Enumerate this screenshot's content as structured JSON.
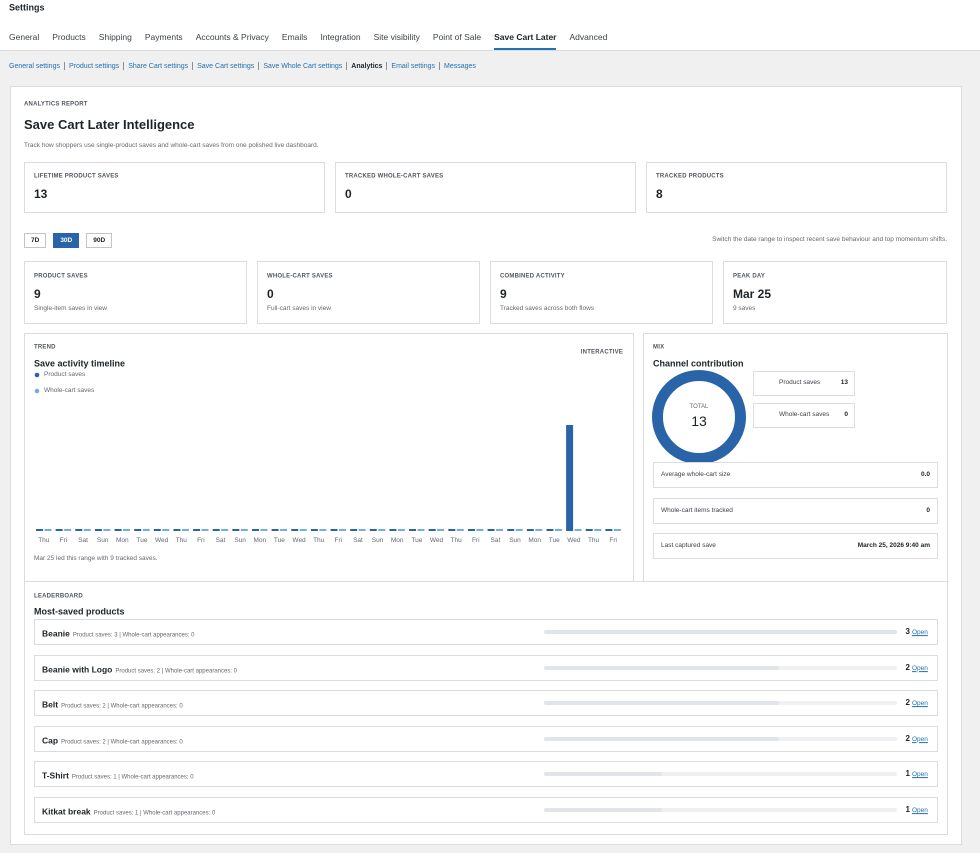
{
  "header": {
    "title": "Settings",
    "tabs": [
      "General",
      "Products",
      "Shipping",
      "Payments",
      "Accounts & Privacy",
      "Emails",
      "Integration",
      "Site visibility",
      "Point of Sale",
      "Save Cart Later",
      "Advanced"
    ],
    "active_tab_index": 9
  },
  "subnav": {
    "links": [
      "General settings",
      "Product settings",
      "Share Cart settings",
      "Save Cart settings",
      "Save Whole Cart settings",
      "Analytics",
      "Email settings",
      "Messages"
    ],
    "active_index": 5
  },
  "report": {
    "eyebrow": "ANALYTICS REPORT",
    "title": "Save Cart Later Intelligence",
    "description": "Track how shoppers use single-product saves and whole-cart saves from one polished live dashboard."
  },
  "lifetime": [
    {
      "label": "LIFETIME PRODUCT SAVES",
      "value": 13
    },
    {
      "label": "TRACKED WHOLE-CART SAVES",
      "value": 0
    },
    {
      "label": "TRACKED PRODUCTS",
      "value": 8
    }
  ],
  "range": {
    "options": [
      "7D",
      "30D",
      "90D"
    ],
    "active_index": 1,
    "hint": "Switch the date range to inspect recent save behaviour and top momentum shifts."
  },
  "kpis": [
    {
      "label": "PRODUCT SAVES",
      "value": 9,
      "note": "Single-item saves in view"
    },
    {
      "label": "WHOLE-CART SAVES",
      "value": 0,
      "note": "Full-cart saves in view"
    },
    {
      "label": "COMBINED ACTIVITY",
      "value": 9,
      "note": "Tracked saves across both flows"
    },
    {
      "label": "PEAK DAY",
      "value": "Mar 25",
      "note": "9 saves"
    }
  ],
  "trend": {
    "eyebrow": "TREND",
    "title": "Save activity timeline",
    "badge": "INTERACTIVE",
    "categories": [
      "Thu",
      "Fri",
      "Sat",
      "Sun",
      "Mon",
      "Tue",
      "Wed",
      "Thu",
      "Fri",
      "Sat",
      "Sun",
      "Mon",
      "Tue",
      "Wed",
      "Thu",
      "Fri",
      "Sat",
      "Sun",
      "Mon",
      "Tue",
      "Wed",
      "Thu",
      "Fri",
      "Sat",
      "Sun",
      "Mon",
      "Tue",
      "Wed",
      "Thu",
      "Fri"
    ],
    "series": [
      {
        "name": "Product saves",
        "color": "#2a64a8",
        "values": [
          0,
          0,
          0,
          0,
          0,
          0,
          0,
          0,
          0,
          0,
          0,
          0,
          0,
          0,
          0,
          0,
          0,
          0,
          0,
          0,
          0,
          0,
          0,
          0,
          0,
          0,
          0,
          9,
          0,
          0
        ]
      },
      {
        "name": "Whole-cart saves",
        "color": "#72aee6",
        "values": [
          0,
          0,
          0,
          0,
          0,
          0,
          0,
          0,
          0,
          0,
          0,
          0,
          0,
          0,
          0,
          0,
          0,
          0,
          0,
          0,
          0,
          0,
          0,
          0,
          0,
          0,
          0,
          0,
          0,
          0
        ]
      }
    ],
    "footnote": "Mar 25 led this range with 9 tracked saves."
  },
  "mix": {
    "eyebrow": "MIX",
    "title": "Channel contribution",
    "center_label": "TOTAL",
    "total": 13,
    "segments": [
      {
        "name": "Product saves",
        "value": 13,
        "color": "#2a64a8"
      },
      {
        "name": "Whole-cart saves",
        "value": 0,
        "color": "#72aee6"
      }
    ],
    "stats": [
      {
        "label": "Average whole-cart size",
        "value": "0.0"
      },
      {
        "label": "Whole-cart items tracked",
        "value": 0
      },
      {
        "label": "Last captured save",
        "value": "March 25, 2026 9:40 am"
      }
    ]
  },
  "leaderboard": {
    "eyebrow": "LEADERBOARD",
    "title": "Most-saved products",
    "link_label": "Open",
    "rows": [
      {
        "name": "Beanie",
        "meta": "Product saves: 3 | Whole-cart appearances: 0",
        "count": 3
      },
      {
        "name": "Beanie with Logo",
        "meta": "Product saves: 2 | Whole-cart appearances: 0",
        "count": 2
      },
      {
        "name": "Belt",
        "meta": "Product saves: 2 | Whole-cart appearances: 0",
        "count": 2
      },
      {
        "name": "Cap",
        "meta": "Product saves: 2 | Whole-cart appearances: 0",
        "count": 2
      },
      {
        "name": "T-Shirt",
        "meta": "Product saves: 1 | Whole-cart appearances: 0",
        "count": 1
      },
      {
        "name": "Kitkat break",
        "meta": "Product saves: 1 | Whole-cart appearances: 0",
        "count": 1
      }
    ]
  }
}
